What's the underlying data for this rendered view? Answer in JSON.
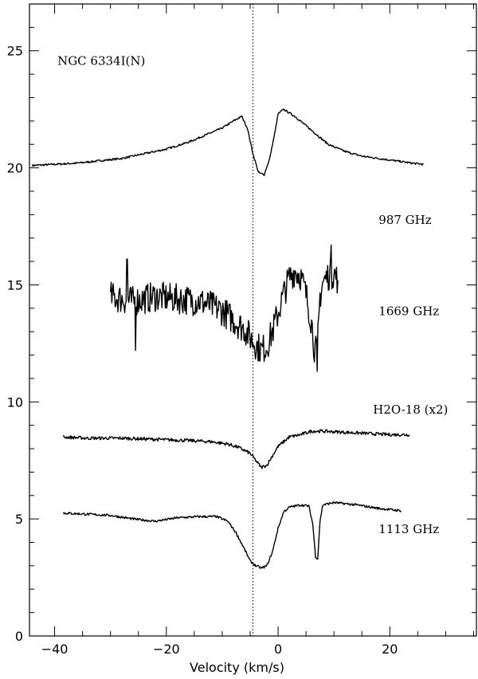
{
  "chart_data": {
    "type": "line",
    "title": "",
    "xlabel": "Velocity (km/s)",
    "ylabel": "",
    "xlim": [
      -44.5,
      35.5
    ],
    "ylim": [
      0,
      27
    ],
    "x_major_ticks": [
      -40,
      -20,
      0,
      20
    ],
    "y_major_ticks": [
      0,
      5,
      10,
      15,
      20,
      25
    ],
    "x_tick_labels": [
      "−40",
      "−20",
      "0",
      "20"
    ],
    "y_tick_labels": [
      "0",
      "5",
      "10",
      "15",
      "20",
      "25"
    ],
    "x_minor_step": 5,
    "y_minor_step": 1,
    "grid": false,
    "reference_line": {
      "x": -4.5,
      "style": "dotted"
    },
    "annotations": [
      {
        "text": "NGC 6334I(N)",
        "x": -39.5,
        "y": 24.4
      },
      {
        "text": "987 GHz",
        "x": 18,
        "y": 17.6
      },
      {
        "text": "1669 GHz",
        "x": 18,
        "y": 13.7
      },
      {
        "text": "H2O-18 (x2)",
        "x": 17,
        "y": 9.5
      },
      {
        "text": "1113 GHz",
        "x": 18,
        "y": 4.4
      }
    ],
    "series": [
      {
        "points": [
          [
            -44,
            20.1
          ],
          [
            -40,
            20.15
          ],
          [
            -36,
            20.2
          ],
          [
            -32,
            20.3
          ],
          [
            -28,
            20.4
          ],
          [
            -24,
            20.6
          ],
          [
            -20,
            20.8
          ],
          [
            -16,
            21.1
          ],
          [
            -13,
            21.4
          ],
          [
            -10,
            21.7
          ],
          [
            -8,
            22.0
          ],
          [
            -6.5,
            22.2
          ],
          [
            -5.5,
            21.7
          ],
          [
            -4.5,
            20.6
          ],
          [
            -3.5,
            19.8
          ],
          [
            -2.5,
            19.7
          ],
          [
            -1.5,
            20.4
          ],
          [
            -0.5,
            21.6
          ],
          [
            0,
            22.3
          ],
          [
            1,
            22.5
          ],
          [
            3,
            22.2
          ],
          [
            5,
            21.8
          ],
          [
            7,
            21.4
          ],
          [
            9,
            21.0
          ],
          [
            12,
            20.7
          ],
          [
            15,
            20.5
          ],
          [
            18,
            20.4
          ],
          [
            21,
            20.3
          ],
          [
            24,
            20.2
          ],
          [
            26,
            20.15
          ]
        ]
      },
      {
        "points": [
          [
            -30,
            14.5
          ],
          [
            -26,
            14.3
          ],
          [
            -22,
            14.5
          ],
          [
            -18,
            14.4
          ],
          [
            -14,
            14.3
          ],
          [
            -12,
            14.1
          ],
          [
            -10,
            13.9
          ],
          [
            -8,
            13.5
          ],
          [
            -6,
            13.1
          ],
          [
            -4.5,
            12.6
          ],
          [
            -3,
            12.2
          ],
          [
            -2,
            12.4
          ],
          [
            -1,
            13.0
          ],
          [
            0,
            13.8
          ],
          [
            1,
            14.6
          ],
          [
            2,
            15.3
          ],
          [
            3,
            15.6
          ],
          [
            4,
            15.4
          ],
          [
            5,
            14.6
          ],
          [
            6,
            13.4
          ],
          [
            6.5,
            12.3
          ],
          [
            7,
            12.1
          ],
          [
            7.5,
            14.5
          ],
          [
            8,
            15.1
          ],
          [
            9,
            15.4
          ],
          [
            10,
            15.5
          ],
          [
            10.7,
            15.2
          ]
        ],
        "noise": 0.65,
        "spikes": [
          [
            -25.5,
            12.2
          ],
          [
            -27,
            16.1
          ],
          [
            7,
            11.3
          ],
          [
            9.5,
            16.7
          ]
        ]
      },
      {
        "points": [
          [
            -38.5,
            8.5
          ],
          [
            -34,
            8.45
          ],
          [
            -28,
            8.45
          ],
          [
            -22,
            8.4
          ],
          [
            -16,
            8.35
          ],
          [
            -12,
            8.3
          ],
          [
            -9,
            8.2
          ],
          [
            -7,
            8.05
          ],
          [
            -5,
            7.8
          ],
          [
            -4,
            7.5
          ],
          [
            -3,
            7.2
          ],
          [
            -2,
            7.3
          ],
          [
            -1,
            7.7
          ],
          [
            0,
            8.1
          ],
          [
            2,
            8.5
          ],
          [
            4,
            8.6
          ],
          [
            6,
            8.75
          ],
          [
            8,
            8.75
          ],
          [
            12,
            8.7
          ],
          [
            16,
            8.65
          ],
          [
            20,
            8.6
          ],
          [
            23.5,
            8.6
          ]
        ],
        "noise": 0.07
      },
      {
        "points": [
          [
            -38.5,
            5.25
          ],
          [
            -34,
            5.2
          ],
          [
            -30,
            5.15
          ],
          [
            -26,
            5.0
          ],
          [
            -22,
            4.9
          ],
          [
            -18,
            5.05
          ],
          [
            -14,
            5.1
          ],
          [
            -11,
            5.1
          ],
          [
            -9,
            4.9
          ],
          [
            -7.5,
            4.4
          ],
          [
            -6,
            3.7
          ],
          [
            -5,
            3.2
          ],
          [
            -4,
            3.0
          ],
          [
            -3,
            2.9
          ],
          [
            -2,
            3.0
          ],
          [
            -1,
            3.6
          ],
          [
            0,
            4.6
          ],
          [
            1,
            5.3
          ],
          [
            2,
            5.5
          ],
          [
            4,
            5.6
          ],
          [
            5.5,
            5.55
          ],
          [
            6.2,
            4.8
          ],
          [
            6.7,
            3.4
          ],
          [
            7.1,
            3.3
          ],
          [
            7.5,
            4.9
          ],
          [
            8,
            5.6
          ],
          [
            10,
            5.7
          ],
          [
            14,
            5.6
          ],
          [
            18,
            5.45
          ],
          [
            22,
            5.35
          ]
        ],
        "noise": 0.05
      }
    ]
  }
}
